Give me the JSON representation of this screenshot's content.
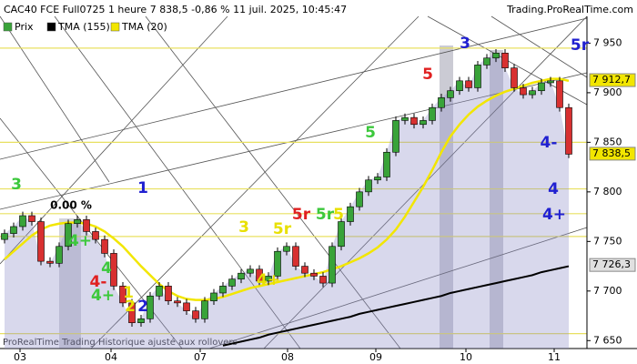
{
  "chart_data": {
    "type": "candlestick",
    "title": "CAC40 FCE Full0725 1 heure 7 838,5 -0,86 % 11 juil. 2025, 10:45:47",
    "source": "Trading.ProRealTime.com",
    "footer": "ProRealTime Trading  Historique ajusté aux rollovers",
    "x": [
      0,
      1,
      2,
      3,
      4,
      5,
      6,
      7,
      8,
      9,
      10,
      11,
      12,
      13,
      14,
      15,
      16,
      17,
      18,
      19,
      20,
      21,
      22,
      23,
      24,
      25,
      26,
      27,
      28,
      29,
      30,
      31,
      32,
      33,
      34,
      35,
      36,
      37,
      38,
      39,
      40,
      41,
      42,
      43,
      44,
      45,
      46,
      47,
      48,
      49,
      50,
      51,
      52,
      53,
      54,
      55,
      56,
      57,
      58,
      59,
      60,
      61,
      62
    ],
    "xlim": [
      -0.5,
      64
    ],
    "xticks": [
      {
        "value": 1.7,
        "label": "03"
      },
      {
        "value": 11.7,
        "label": "04"
      },
      {
        "value": 21.5,
        "label": "07"
      },
      {
        "value": 31.1,
        "label": "08"
      },
      {
        "value": 40.8,
        "label": "09"
      },
      {
        "value": 50.7,
        "label": "10"
      },
      {
        "value": 60.4,
        "label": "11"
      }
    ],
    "ylim": [
      7642,
      7977
    ],
    "yticks": [
      {
        "value": 7650,
        "label": "7 650"
      },
      {
        "value": 7700,
        "label": "7 700"
      },
      {
        "value": 7750,
        "label": "7 750"
      },
      {
        "value": 7800,
        "label": "7 800"
      },
      {
        "value": 7850,
        "label": "7 850"
      },
      {
        "value": 7900,
        "label": "7 900"
      },
      {
        "value": 7950,
        "label": "7 950"
      }
    ],
    "series": [
      {
        "name": "Prix",
        "color": "#39a339",
        "down_color": "#d83030",
        "open": [
          7752,
          7758,
          7765,
          7776,
          7770,
          7730,
          7728,
          7745,
          7768,
          7772,
          7760,
          7752,
          7738,
          7705,
          7688,
          7668,
          7672,
          7695,
          7705,
          7690,
          7688,
          7680,
          7672,
          7690,
          7698,
          7705,
          7712,
          7718,
          7722,
          7710,
          7715,
          7740,
          7745,
          7725,
          7718,
          7715,
          7708,
          7745,
          7770,
          7785,
          7800,
          7812,
          7815,
          7840,
          7872,
          7875,
          7868,
          7872,
          7885,
          7895,
          7902,
          7912,
          7905,
          7928,
          7935,
          7940,
          7925,
          7905,
          7898,
          7902,
          7910,
          7912,
          7885
        ],
        "high": [
          7762,
          7769,
          7780,
          7780,
          7774,
          7734,
          7749,
          7772,
          7776,
          7776,
          7764,
          7756,
          7742,
          7709,
          7692,
          7676,
          7699,
          7709,
          7709,
          7694,
          7692,
          7684,
          7694,
          7702,
          7709,
          7716,
          7722,
          7726,
          7726,
          7719,
          7744,
          7749,
          7749,
          7729,
          7722,
          7719,
          7749,
          7774,
          7789,
          7804,
          7816,
          7819,
          7844,
          7876,
          7879,
          7879,
          7876,
          7889,
          7899,
          7906,
          7916,
          7916,
          7932,
          7939,
          7944,
          7944,
          7929,
          7909,
          7906,
          7914,
          7916,
          7916,
          7889
        ],
        "low": [
          7748,
          7754,
          7761,
          7766,
          7726,
          7724,
          7724,
          7741,
          7764,
          7756,
          7748,
          7734,
          7701,
          7684,
          7664,
          7664,
          7668,
          7691,
          7686,
          7684,
          7676,
          7668,
          7668,
          7686,
          7694,
          7701,
          7708,
          7714,
          7706,
          7706,
          7711,
          7736,
          7721,
          7714,
          7711,
          7704,
          7704,
          7741,
          7766,
          7781,
          7796,
          7808,
          7811,
          7836,
          7868,
          7864,
          7864,
          7868,
          7881,
          7891,
          7898,
          7901,
          7901,
          7924,
          7931,
          7921,
          7901,
          7894,
          7894,
          7898,
          7906,
          7881,
          7834
        ],
        "close": [
          7758,
          7765,
          7776,
          7770,
          7730,
          7728,
          7745,
          7768,
          7772,
          7760,
          7752,
          7738,
          7705,
          7688,
          7668,
          7672,
          7695,
          7705,
          7690,
          7688,
          7680,
          7672,
          7690,
          7698,
          7705,
          7712,
          7718,
          7722,
          7710,
          7715,
          7740,
          7745,
          7725,
          7718,
          7715,
          7708,
          7745,
          7770,
          7785,
          7800,
          7812,
          7815,
          7840,
          7872,
          7875,
          7868,
          7872,
          7885,
          7895,
          7902,
          7912,
          7905,
          7928,
          7935,
          7940,
          7925,
          7905,
          7898,
          7902,
          7910,
          7912,
          7885,
          7838
        ]
      },
      {
        "name": "TMA (155)",
        "color": "#000000",
        "values": [
          null,
          null,
          null,
          null,
          null,
          null,
          null,
          null,
          null,
          null,
          null,
          null,
          null,
          null,
          null,
          null,
          null,
          null,
          null,
          null,
          null,
          null,
          null,
          null,
          7645,
          7647,
          7649,
          7651,
          7653,
          7656,
          7658,
          7660,
          7662,
          7664,
          7666,
          7668,
          7670,
          7672,
          7674,
          7677,
          7679,
          7681,
          7683,
          7685,
          7687,
          7689,
          7691,
          7693,
          7695,
          7698,
          7700,
          7702,
          7704,
          7706,
          7708,
          7710,
          7712,
          7714,
          7716,
          7719,
          7721,
          7723,
          7725
        ]
      },
      {
        "name": "TMA (20)",
        "color": "#f2e600",
        "values": [
          7732,
          7740,
          7748,
          7756,
          7762,
          7766,
          7768,
          7769,
          7769,
          7768,
          7765,
          7760,
          7753,
          7745,
          7735,
          7725,
          7716,
          7707,
          7700,
          7695,
          7692,
          7691,
          7691,
          7692,
          7694,
          7697,
          7700,
          7703,
          7705,
          7707,
          7709,
          7711,
          7713,
          7715,
          7717,
          7719,
          7722,
          7725,
          7729,
          7733,
          7738,
          7744,
          7752,
          7762,
          7775,
          7790,
          7805,
          7822,
          7840,
          7856,
          7868,
          7878,
          7886,
          7892,
          7897,
          7901,
          7904,
          7907,
          7910,
          7912,
          7914,
          7914,
          7912
        ]
      }
    ],
    "levels": {
      "color": "#e8e060",
      "values": [
        7945,
        7850,
        7803,
        7778,
        7755,
        7657
      ]
    },
    "price_tags": [
      {
        "value": 7912.7,
        "label": "7 912,7",
        "color": "#f2e600"
      },
      {
        "value": 7838.5,
        "label": "7 838,5",
        "color": "#f2e600"
      },
      {
        "value": 7726.3,
        "label": "7 726,3",
        "color": "#e0e0e0"
      }
    ],
    "annotations": [
      {
        "text": "3",
        "color": "#3cc83c"
      },
      {
        "text": "0.00 %",
        "color": "#000000"
      },
      {
        "text": "1",
        "color": "#2020d0"
      },
      {
        "text": "4+",
        "color": "#3cc83c"
      },
      {
        "text": "4-",
        "color": "#e02020"
      },
      {
        "text": "4",
        "color": "#3cc83c"
      },
      {
        "text": "1",
        "color": "#e8e000"
      },
      {
        "text": "4+",
        "color": "#3cc83c"
      },
      {
        "text": "2",
        "color": "#e8e000"
      },
      {
        "text": "2",
        "color": "#2020d0"
      },
      {
        "text": "3",
        "color": "#e8e000"
      },
      {
        "text": "4+",
        "color": "#e8e000"
      },
      {
        "text": "5r",
        "color": "#e8e000"
      },
      {
        "text": "5r",
        "color": "#e02020"
      },
      {
        "text": "5r",
        "color": "#3cc83c"
      },
      {
        "text": "5",
        "color": "#e8e000"
      },
      {
        "text": "5",
        "color": "#3cc83c"
      },
      {
        "text": "5",
        "color": "#e02020"
      },
      {
        "text": "3",
        "color": "#2020d0"
      },
      {
        "text": "5r",
        "color": "#2020d0"
      },
      {
        "text": "4-",
        "color": "#2020d0"
      },
      {
        "text": "4",
        "color": "#2020d0"
      },
      {
        "text": "4+",
        "color": "#2020d0"
      }
    ]
  }
}
